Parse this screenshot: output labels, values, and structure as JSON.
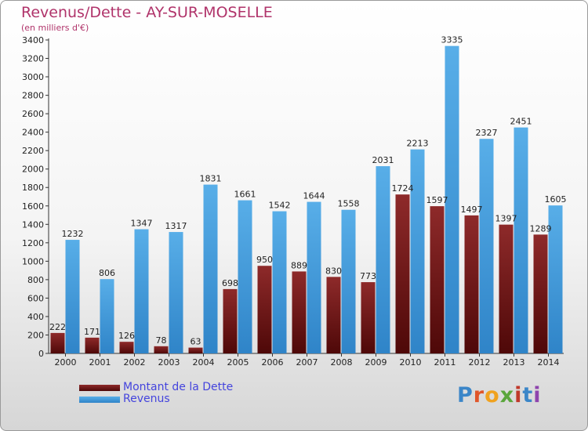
{
  "header": {
    "title": "Revenus/Dette - AY-SUR-MOSELLE",
    "subtitle": "(en milliers d'€)"
  },
  "logo": {
    "letters": [
      "P",
      "r",
      "o",
      "x",
      "i",
      "t",
      "i"
    ]
  },
  "colors": {
    "dette": "#7a1a1a",
    "revenus": "#4ea3e2",
    "title": "#b0336a"
  },
  "chart_data": {
    "type": "bar",
    "title": "Revenus/Dette - AY-SUR-MOSELLE",
    "subtitle": "(en milliers d'€)",
    "categories": [
      "2000",
      "2001",
      "2002",
      "2003",
      "2004",
      "2005",
      "2006",
      "2007",
      "2008",
      "2009",
      "2010",
      "2011",
      "2012",
      "2013",
      "2014"
    ],
    "series": [
      {
        "name": "Montant de la Dette",
        "color": "#7a1a1a",
        "values": [
          222,
          171,
          126,
          78,
          63,
          698,
          950,
          889,
          830,
          773,
          1724,
          1597,
          1497,
          1397,
          1289
        ]
      },
      {
        "name": "Revenus",
        "color": "#4ea3e2",
        "values": [
          1232,
          806,
          1347,
          1317,
          1831,
          1661,
          1542,
          1644,
          1558,
          2031,
          2213,
          3335,
          2327,
          2451,
          1605
        ]
      }
    ],
    "ylim": [
      0,
      3400
    ],
    "yticks": [
      0,
      200,
      400,
      600,
      800,
      1000,
      1200,
      1400,
      1600,
      1800,
      2000,
      2200,
      2400,
      2600,
      2800,
      3000,
      3200,
      3400
    ],
    "grid": false,
    "legend": "bottom-left"
  }
}
